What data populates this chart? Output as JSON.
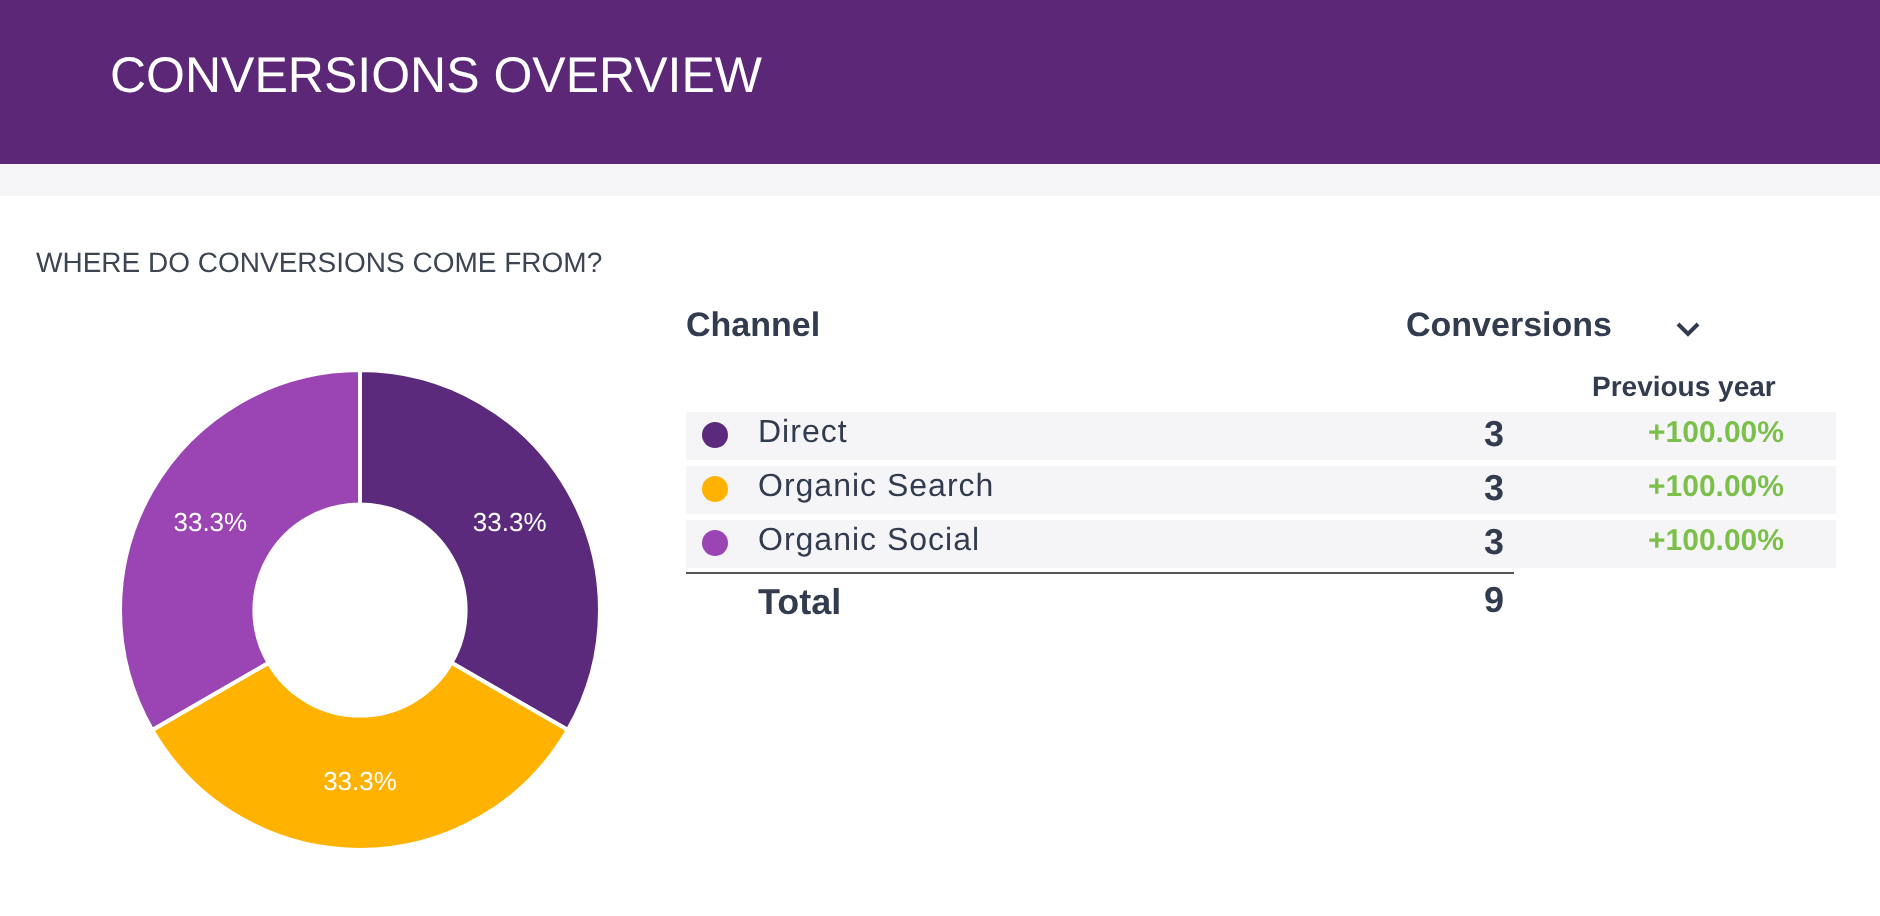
{
  "chart_data": {
    "type": "donut",
    "title": "CONVERSIONS OVERVIEW",
    "subtitle": "WHERE DO CONVERSIONS COME FROM?",
    "categories": [
      "Direct",
      "Organic Search",
      "Organic Social"
    ],
    "values": [
      33.3,
      33.3,
      33.3
    ],
    "colors": [
      "#5c2a7d",
      "#ffb300",
      "#9b45b5"
    ],
    "value_labels": [
      "33.3%",
      "33.3%",
      "33.3%"
    ],
    "legend": "right",
    "legend_title": "Channel",
    "annotations": [
      "Conversions",
      "Previous year",
      "+100.00%",
      "+100.00%",
      "+100.00%",
      "Total",
      "3",
      "3",
      "3"
    ],
    "totals": [
      "9"
    ]
  }
}
